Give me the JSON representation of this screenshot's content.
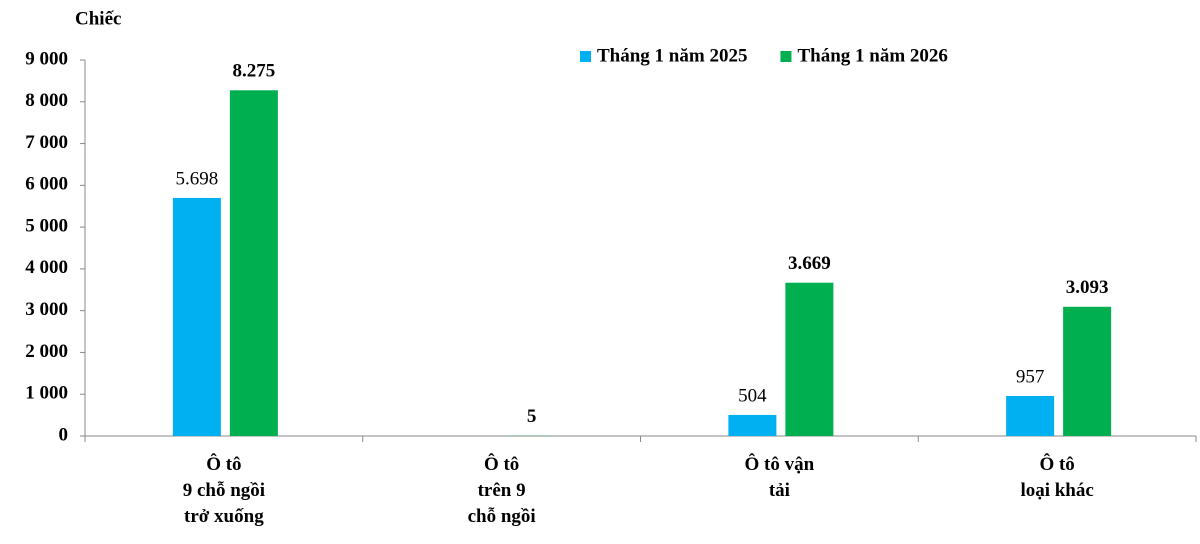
{
  "chart_data": {
    "type": "bar",
    "y_label": "Chiếc",
    "categories": [
      "Ô tô\n9 chỗ ngồi\ntrở xuống",
      "Ô tô\ntrên 9\nchỗ ngồi",
      "Ô tô vận\ntải",
      "Ô tô\nloại khác"
    ],
    "series": [
      {
        "name": "Tháng 1 năm 2025",
        "color": "#00b0f0",
        "values": [
          5698,
          null,
          504,
          957
        ],
        "value_labels": [
          "5.698",
          null,
          "504",
          "957"
        ]
      },
      {
        "name": "Tháng 1 năm 2026",
        "color": "#00b050",
        "values": [
          8275,
          5,
          3669,
          3093
        ],
        "value_labels": [
          "8.275",
          "5",
          "3.669",
          "3.093"
        ]
      }
    ],
    "ylim": [
      0,
      9000
    ],
    "yticks": [
      0,
      {
        "value": 1000,
        "label": "1 000"
      },
      {
        "value": 2000,
        "label": "2 000"
      },
      {
        "value": 3000,
        "label": "3 000"
      },
      {
        "value": 4000,
        "label": "4 000"
      },
      {
        "value": 5000,
        "label": "5 000"
      },
      {
        "value": 6000,
        "label": "6 000"
      },
      {
        "value": 7000,
        "label": "7 000"
      },
      {
        "value": 8000,
        "label": "8 000"
      },
      {
        "value": 9000,
        "label": "9 000"
      }
    ],
    "legend": "top-right"
  }
}
